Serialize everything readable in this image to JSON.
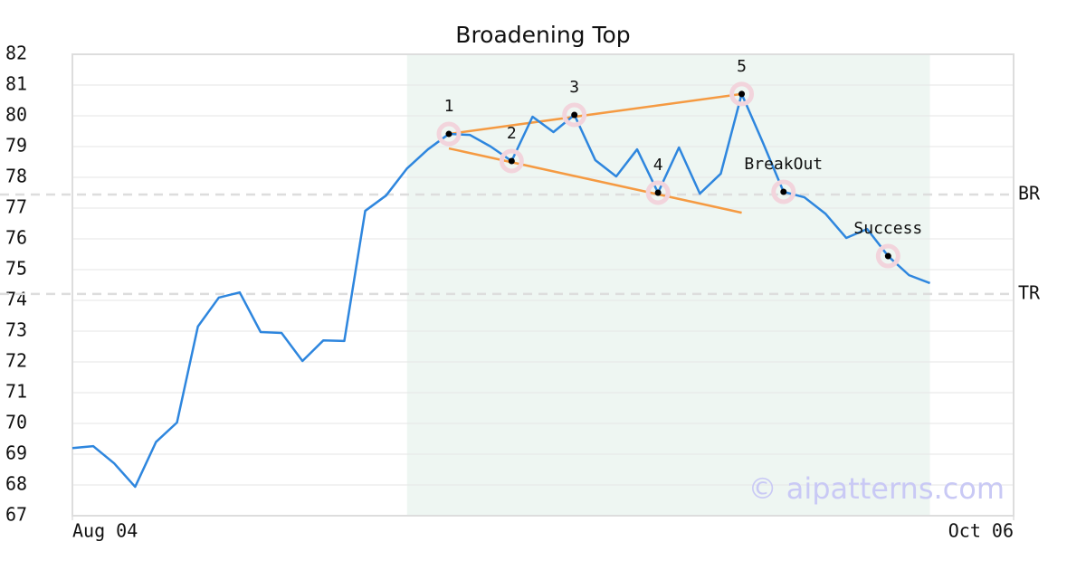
{
  "chart_data": {
    "type": "line",
    "title": "Broadening Top",
    "x": [
      0,
      1,
      2,
      3,
      4,
      5,
      6,
      7,
      8,
      9,
      10,
      11,
      12,
      13,
      14,
      15,
      16,
      17,
      18,
      19,
      20,
      21,
      22,
      23,
      24,
      25,
      26,
      27,
      28,
      29,
      30,
      31,
      32,
      33,
      34,
      35,
      36,
      37,
      38,
      39,
      40,
      41
    ],
    "values": [
      69.2,
      69.26,
      68.7,
      67.94,
      69.4,
      70.03,
      73.15,
      74.09,
      74.26,
      72.97,
      72.94,
      72.03,
      72.7,
      72.68,
      76.91,
      77.41,
      78.29,
      78.91,
      79.41,
      79.38,
      79.0,
      78.53,
      79.97,
      79.47,
      80.03,
      78.56,
      78.03,
      78.91,
      77.5,
      78.97,
      77.47,
      78.12,
      80.71,
      79.15,
      77.53,
      77.35,
      76.82,
      76.03,
      76.32,
      75.44,
      74.82,
      74.56
    ],
    "color": "#2e86de",
    "xlim": [
      0,
      45
    ],
    "xticks": [
      {
        "value": 0,
        "label": "Aug 04"
      },
      {
        "value": 45,
        "label": "Oct 06"
      }
    ],
    "ylim": [
      67,
      82
    ],
    "yticks": [
      67,
      68,
      69,
      70,
      71,
      72,
      73,
      74,
      75,
      76,
      77,
      78,
      79,
      80,
      81,
      82
    ],
    "grid": true,
    "highlight_x": [
      16,
      41
    ],
    "highlight_color": "#eef6f2",
    "hlines": [
      {
        "label": "BR",
        "value": 77.44
      },
      {
        "label": "TR",
        "value": 74.21
      }
    ],
    "trendline_color": "#f59a42",
    "trendlines": [
      {
        "x": [
          18,
          32
        ],
        "values": [
          79.41,
          80.71
        ]
      },
      {
        "x": [
          18,
          32
        ],
        "values": [
          78.94,
          76.85
        ]
      }
    ],
    "annotations": [
      {
        "label": "1",
        "x": 18,
        "value": 79.41
      },
      {
        "label": "2",
        "x": 21,
        "value": 78.53
      },
      {
        "label": "3",
        "x": 24,
        "value": 80.03
      },
      {
        "label": "4",
        "x": 28,
        "value": 77.5
      },
      {
        "label": "5",
        "x": 32,
        "value": 80.71
      },
      {
        "label": "BreakOut",
        "x": 34,
        "value": 77.53
      },
      {
        "label": "Success",
        "x": 39,
        "value": 75.44
      }
    ],
    "watermark": "© aipatterns.com"
  }
}
